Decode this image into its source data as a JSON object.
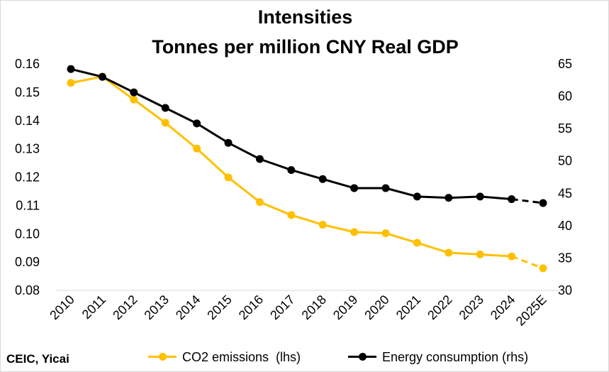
{
  "title": [
    "Intensities",
    "Tonnes per million CNY Real GDP"
  ],
  "source": "CEIC, Yicai",
  "colors": {
    "co2": "#FFC000",
    "energy": "#000000",
    "grid": "#d9d9d9"
  },
  "chart_data": {
    "type": "line",
    "categories": [
      "2010",
      "2011",
      "2012",
      "2013",
      "2014",
      "2015",
      "2016",
      "2017",
      "2018",
      "2019",
      "2020",
      "2021",
      "2022",
      "2023",
      "2024",
      "2025E"
    ],
    "series": [
      {
        "name": "CO2 emissions  (lhs)",
        "axis": "left",
        "values": [
          0.1533,
          0.1555,
          0.1474,
          0.1392,
          0.1301,
          0.1199,
          0.1112,
          0.1066,
          0.1032,
          0.1006,
          0.1002,
          0.0968,
          0.0933,
          0.0927,
          0.092,
          0.0878
        ],
        "dashed_last_segment": true
      },
      {
        "name": "Energy consumption (rhs)",
        "axis": "right",
        "values": [
          64.2,
          63.0,
          60.6,
          58.2,
          55.8,
          52.8,
          50.3,
          48.6,
          47.2,
          45.8,
          45.8,
          44.5,
          44.3,
          44.5,
          44.1,
          43.5
        ],
        "dashed_last_segment": true
      }
    ],
    "y_left": {
      "min": 0.08,
      "max": 0.16,
      "ticks": [
        "0.08",
        "0.09",
        "0.10",
        "0.11",
        "0.12",
        "0.13",
        "0.14",
        "0.15",
        "0.16"
      ]
    },
    "y_right": {
      "min": 30,
      "max": 65,
      "ticks": [
        "30",
        "35",
        "40",
        "45",
        "50",
        "55",
        "60",
        "65"
      ]
    },
    "grid": false,
    "legend_position": "bottom"
  }
}
